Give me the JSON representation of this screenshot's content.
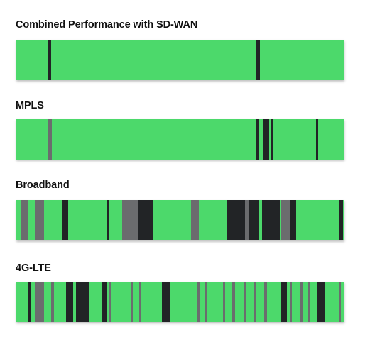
{
  "colors": {
    "up": "#4cd96b",
    "down": "#222426",
    "degraded": "#6b6c6e"
  },
  "timelines": [
    {
      "id": "sdwan",
      "title": "Combined Performance with SD-WAN",
      "segments": [
        {
          "start": 0.099,
          "end": 0.108,
          "state": "down"
        },
        {
          "start": 0.734,
          "end": 0.745,
          "state": "down"
        }
      ]
    },
    {
      "id": "mpls",
      "title": "MPLS",
      "segments": [
        {
          "start": 0.099,
          "end": 0.111,
          "state": "degraded"
        },
        {
          "start": 0.734,
          "end": 0.742,
          "state": "down"
        },
        {
          "start": 0.753,
          "end": 0.773,
          "state": "down"
        },
        {
          "start": 0.78,
          "end": 0.786,
          "state": "down"
        },
        {
          "start": 0.916,
          "end": 0.923,
          "state": "down"
        }
      ]
    },
    {
      "id": "broadband",
      "title": "Broadband",
      "segments": [
        {
          "start": 0.017,
          "end": 0.039,
          "state": "degraded"
        },
        {
          "start": 0.058,
          "end": 0.087,
          "state": "degraded"
        },
        {
          "start": 0.14,
          "end": 0.16,
          "state": "down"
        },
        {
          "start": 0.277,
          "end": 0.284,
          "state": "down"
        },
        {
          "start": 0.325,
          "end": 0.375,
          "state": "degraded"
        },
        {
          "start": 0.375,
          "end": 0.418,
          "state": "down"
        },
        {
          "start": 0.535,
          "end": 0.558,
          "state": "degraded"
        },
        {
          "start": 0.645,
          "end": 0.699,
          "state": "down"
        },
        {
          "start": 0.699,
          "end": 0.71,
          "state": "degraded"
        },
        {
          "start": 0.71,
          "end": 0.74,
          "state": "down"
        },
        {
          "start": 0.75,
          "end": 0.805,
          "state": "down"
        },
        {
          "start": 0.81,
          "end": 0.82,
          "state": "degraded"
        },
        {
          "start": 0.82,
          "end": 0.835,
          "state": "degraded"
        },
        {
          "start": 0.835,
          "end": 0.855,
          "state": "down"
        },
        {
          "start": 0.985,
          "end": 0.998,
          "state": "down"
        }
      ]
    },
    {
      "id": "lte",
      "title": "4G-LTE",
      "segments": [
        {
          "start": 0.039,
          "end": 0.047,
          "state": "down"
        },
        {
          "start": 0.058,
          "end": 0.087,
          "state": "degraded"
        },
        {
          "start": 0.108,
          "end": 0.116,
          "state": "degraded"
        },
        {
          "start": 0.154,
          "end": 0.175,
          "state": "down"
        },
        {
          "start": 0.184,
          "end": 0.225,
          "state": "down"
        },
        {
          "start": 0.262,
          "end": 0.278,
          "state": "down"
        },
        {
          "start": 0.283,
          "end": 0.29,
          "state": "degraded"
        },
        {
          "start": 0.353,
          "end": 0.358,
          "state": "degraded"
        },
        {
          "start": 0.377,
          "end": 0.384,
          "state": "degraded"
        },
        {
          "start": 0.445,
          "end": 0.469,
          "state": "down"
        },
        {
          "start": 0.554,
          "end": 0.56,
          "state": "degraded"
        },
        {
          "start": 0.577,
          "end": 0.585,
          "state": "degraded"
        },
        {
          "start": 0.632,
          "end": 0.638,
          "state": "degraded"
        },
        {
          "start": 0.66,
          "end": 0.669,
          "state": "degraded"
        },
        {
          "start": 0.695,
          "end": 0.703,
          "state": "degraded"
        },
        {
          "start": 0.725,
          "end": 0.733,
          "state": "degraded"
        },
        {
          "start": 0.758,
          "end": 0.767,
          "state": "degraded"
        },
        {
          "start": 0.808,
          "end": 0.826,
          "state": "down"
        },
        {
          "start": 0.835,
          "end": 0.843,
          "state": "degraded"
        },
        {
          "start": 0.866,
          "end": 0.874,
          "state": "degraded"
        },
        {
          "start": 0.889,
          "end": 0.897,
          "state": "degraded"
        },
        {
          "start": 0.92,
          "end": 0.941,
          "state": "down"
        },
        {
          "start": 0.985,
          "end": 0.991,
          "state": "degraded"
        }
      ]
    }
  ]
}
